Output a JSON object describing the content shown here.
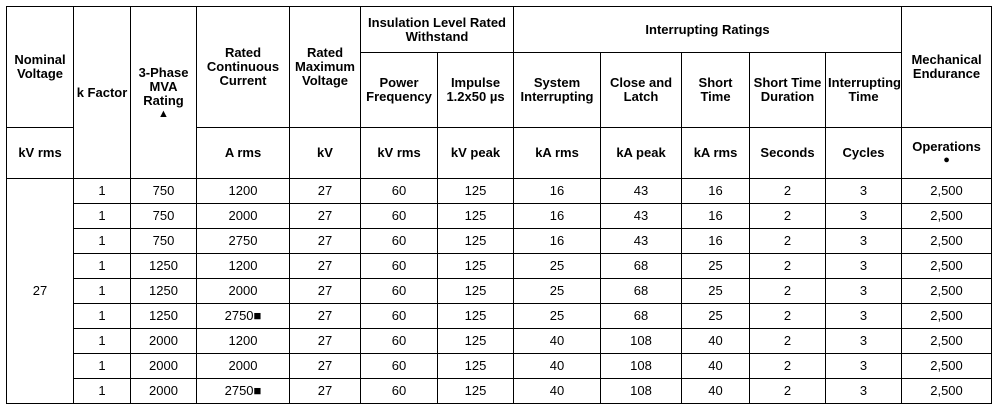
{
  "headers": {
    "nominal_voltage": "Nominal Voltage",
    "k_factor": "k Factor",
    "mva_rating": "3-Phase MVA Rating",
    "mva_symbol": "▲",
    "rated_continuous_current": "Rated Continuous Current",
    "rated_maximum_voltage": "Rated Maximum Voltage",
    "insulation_level": "Insulation Level Rated Withstand",
    "interrupting_ratings": "Interrupting Ratings",
    "mechanical_endurance": "Mechanical Endurance",
    "power_frequency": "Power Frequency",
    "impulse": "Impulse 1.2x50 µs",
    "system_interrupting": "System Interrupting",
    "close_and_latch": "Close and Latch",
    "short_time": "Short Time",
    "short_time_duration": "Short Time Duration",
    "interrupting_time": "Interrupting Time"
  },
  "units": {
    "nominal_voltage": "kV rms",
    "rated_continuous_current": "A rms",
    "rated_maximum_voltage": "kV",
    "power_frequency": "kV rms",
    "impulse": "kV peak",
    "system_interrupting": "kA rms",
    "close_and_latch": "kA peak",
    "short_time": "kA rms",
    "short_time_duration": "Seconds",
    "interrupting_time": "Cycles",
    "mechanical_endurance": "Operations",
    "mechanical_symbol": "●"
  },
  "nominal_voltage_value": "27",
  "rows": [
    [
      "1",
      "750",
      "1200",
      "27",
      "60",
      "125",
      "16",
      "43",
      "16",
      "2",
      "3",
      "2,500"
    ],
    [
      "1",
      "750",
      "2000",
      "27",
      "60",
      "125",
      "16",
      "43",
      "16",
      "2",
      "3",
      "2,500"
    ],
    [
      "1",
      "750",
      "2750",
      "27",
      "60",
      "125",
      "16",
      "43",
      "16",
      "2",
      "3",
      "2,500"
    ],
    [
      "1",
      "1250",
      "1200",
      "27",
      "60",
      "125",
      "25",
      "68",
      "25",
      "2",
      "3",
      "2,500"
    ],
    [
      "1",
      "1250",
      "2000",
      "27",
      "60",
      "125",
      "25",
      "68",
      "25",
      "2",
      "3",
      "2,500"
    ],
    [
      "1",
      "1250",
      "2750■",
      "27",
      "60",
      "125",
      "25",
      "68",
      "25",
      "2",
      "3",
      "2,500"
    ],
    [
      "1",
      "2000",
      "1200",
      "27",
      "60",
      "125",
      "40",
      "108",
      "40",
      "2",
      "3",
      "2,500"
    ],
    [
      "1",
      "2000",
      "2000",
      "27",
      "60",
      "125",
      "40",
      "108",
      "40",
      "2",
      "3",
      "2,500"
    ],
    [
      "1",
      "2000",
      "2750■",
      "27",
      "60",
      "125",
      "40",
      "108",
      "40",
      "2",
      "3",
      "2,500"
    ]
  ]
}
